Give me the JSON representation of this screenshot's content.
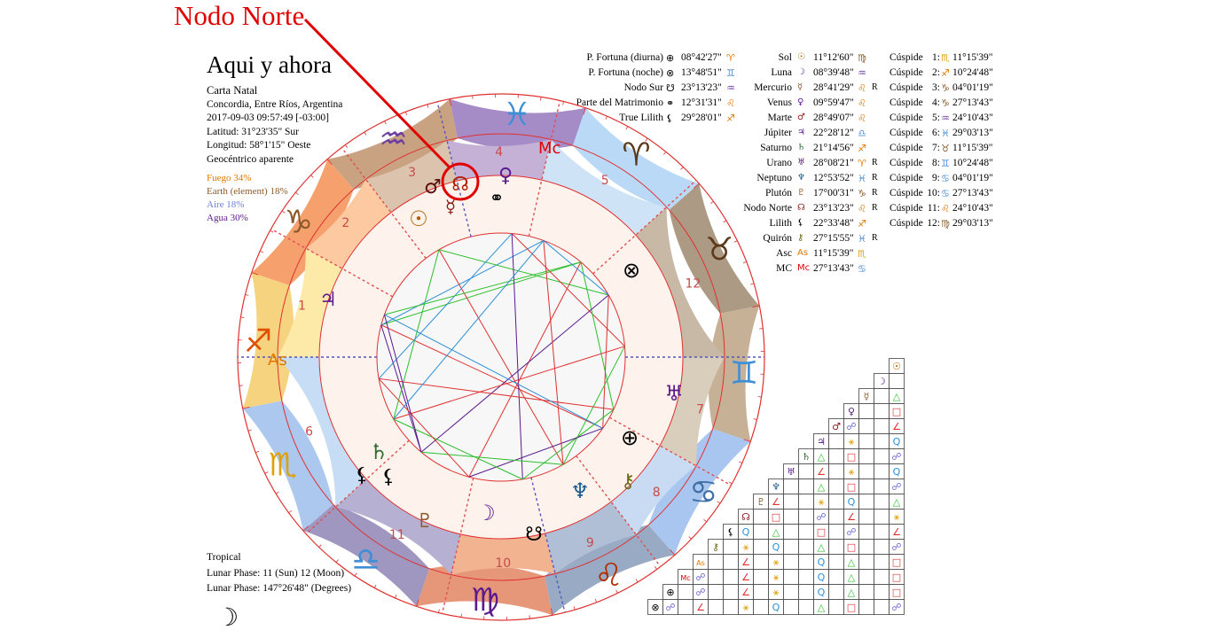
{
  "annotation": {
    "label": "Nodo Norte"
  },
  "chart_info": {
    "title": "Aqui y ahora",
    "subtitle": "Carta Natal",
    "place": "Concordia, Entre Ríos, Argentina",
    "datetime": "2017-09-03 09:57:49 [-03:00]",
    "latitude": "Latitud: 31°23'35\" Sur",
    "longitude": "Longitud: 58°1'15\" Oeste",
    "mode": "Geocéntrico aparente"
  },
  "elements": [
    {
      "label": "Fuego 34%",
      "color": "#e07800"
    },
    {
      "label": "Earth (element) 18%",
      "color": "#8b5a2b"
    },
    {
      "label": "Aire 18%",
      "color": "#6e7fd6"
    },
    {
      "label": "Agua 30%",
      "color": "#5b1a8c"
    }
  ],
  "bottom_info": {
    "zodiac": "Tropical",
    "lunar_phase": "Lunar Phase: 11 (Sun) 12 (Moon)",
    "lunar_degrees": "Lunar Phase: 147°26'48\" (Degrees)",
    "moon_glyph": "☽"
  },
  "points_table": [
    {
      "name": "P. Fortuna (diurna)",
      "glyph": "⊕",
      "glyph_color": "#000",
      "pos": "08°42'27\"",
      "sign": "♈",
      "sign_color": "#e07800"
    },
    {
      "name": "P. Fortuna (noche)",
      "glyph": "⊗",
      "glyph_color": "#000",
      "pos": "13°48'51\"",
      "sign": "♊",
      "sign_color": "#4f8fd6"
    },
    {
      "name": "Nodo Sur",
      "glyph": "☋",
      "glyph_color": "#000",
      "pos": "23°13'23\"",
      "sign": "♒",
      "sign_color": "#6e3fa3"
    },
    {
      "name": "Parte del Matrimonio",
      "glyph": "⚭",
      "glyph_color": "#000",
      "pos": "12°31'31\"",
      "sign": "♌",
      "sign_color": "#e07800"
    },
    {
      "name": "True Lilith",
      "glyph": "⚸",
      "glyph_color": "#000",
      "pos": "29°28'01\"",
      "sign": "♐",
      "sign_color": "#e07800"
    }
  ],
  "planets_table": [
    {
      "name": "Sol",
      "glyph": "☉",
      "glyph_color": "#b06000",
      "pos": "11°12'60\"",
      "sign": "♍",
      "sign_color": "#8b5a2b",
      "retro": ""
    },
    {
      "name": "Luna",
      "glyph": "☽",
      "glyph_color": "#5b1a8c",
      "pos": "08°39'48\"",
      "sign": "♒",
      "sign_color": "#6e3fa3",
      "retro": ""
    },
    {
      "name": "Mercurio",
      "glyph": "☿",
      "glyph_color": "#8b5a2b",
      "pos": "28°41'29\"",
      "sign": "♌",
      "sign_color": "#e07800",
      "retro": "R"
    },
    {
      "name": "Venus",
      "glyph": "♀",
      "glyph_color": "#5b1a8c",
      "pos": "09°59'47\"",
      "sign": "♌",
      "sign_color": "#e07800",
      "retro": ""
    },
    {
      "name": "Marte",
      "glyph": "♂",
      "glyph_color": "#8b1a1a",
      "pos": "28°49'07\"",
      "sign": "♌",
      "sign_color": "#e07800",
      "retro": ""
    },
    {
      "name": "Júpiter",
      "glyph": "♃",
      "glyph_color": "#5b1a8c",
      "pos": "22°28'12\"",
      "sign": "♎",
      "sign_color": "#4f8fd6",
      "retro": ""
    },
    {
      "name": "Saturno",
      "glyph": "♄",
      "glyph_color": "#2e6b2e",
      "pos": "21°14'56\"",
      "sign": "♐",
      "sign_color": "#e07800",
      "retro": ""
    },
    {
      "name": "Urano",
      "glyph": "♅",
      "glyph_color": "#5b1a8c",
      "pos": "28°08'21\"",
      "sign": "♈",
      "sign_color": "#e07800",
      "retro": "R"
    },
    {
      "name": "Neptuno",
      "glyph": "♆",
      "glyph_color": "#1a5b8c",
      "pos": "12°53'52\"",
      "sign": "♓",
      "sign_color": "#4f8fd6",
      "retro": "R"
    },
    {
      "name": "Plutón",
      "glyph": "♇",
      "glyph_color": "#8b5a2b",
      "pos": "17°00'31\"",
      "sign": "♑",
      "sign_color": "#8b5a2b",
      "retro": "R"
    },
    {
      "name": "Nodo Norte",
      "glyph": "☊",
      "glyph_color": "#8b1a1a",
      "pos": "23°13'23\"",
      "sign": "♌",
      "sign_color": "#e07800",
      "retro": "R"
    },
    {
      "name": "Lilith",
      "glyph": "⚸",
      "glyph_color": "#000",
      "pos": "22°33'48\"",
      "sign": "♐",
      "sign_color": "#e07800",
      "retro": ""
    },
    {
      "name": "Quirón",
      "glyph": "⚷",
      "glyph_color": "#6b6b1a",
      "pos": "27°15'55\"",
      "sign": "♓",
      "sign_color": "#4f8fd6",
      "retro": "R"
    },
    {
      "name": "Asc",
      "glyph": "As",
      "glyph_color": "#e07800",
      "pos": "11°15'39\"",
      "sign": "♏",
      "sign_color": "#e0a000",
      "retro": ""
    },
    {
      "name": "MC",
      "glyph": "Mc",
      "glyph_color": "#e00000",
      "pos": "27°13'43\"",
      "sign": "♋",
      "sign_color": "#4f8fd6",
      "retro": ""
    }
  ],
  "cusps_table": [
    {
      "label": "Cúspide",
      "num": "1:",
      "sign": "♏",
      "sign_color": "#e0a000",
      "pos": "11°15'39\""
    },
    {
      "label": "Cúspide",
      "num": "2:",
      "sign": "♐",
      "sign_color": "#e07800",
      "pos": "10°24'48\""
    },
    {
      "label": "Cúspide",
      "num": "3:",
      "sign": "♑",
      "sign_color": "#8b5a2b",
      "pos": "04°01'19\""
    },
    {
      "label": "Cúspide",
      "num": "4:",
      "sign": "♑",
      "sign_color": "#8b5a2b",
      "pos": "27°13'43\""
    },
    {
      "label": "Cúspide",
      "num": "5:",
      "sign": "♒",
      "sign_color": "#6e3fa3",
      "pos": "24°10'43\""
    },
    {
      "label": "Cúspide",
      "num": "6:",
      "sign": "♓",
      "sign_color": "#4f8fd6",
      "pos": "29°03'13\""
    },
    {
      "label": "Cúspide",
      "num": "7:",
      "sign": "♉",
      "sign_color": "#8b5a2b",
      "pos": "11°15'39\""
    },
    {
      "label": "Cúspide",
      "num": "8:",
      "sign": "♊",
      "sign_color": "#4f8fd6",
      "pos": "10°24'48\""
    },
    {
      "label": "Cúspide",
      "num": "9:",
      "sign": "♋",
      "sign_color": "#4f8fd6",
      "pos": "04°01'19\""
    },
    {
      "label": "Cúspide",
      "num": "10:",
      "sign": "♋",
      "sign_color": "#4f8fd6",
      "pos": "27°13'43\""
    },
    {
      "label": "Cúspide",
      "num": "11:",
      "sign": "♌",
      "sign_color": "#e07800",
      "pos": "24°10'43\""
    },
    {
      "label": "Cúspide",
      "num": "12:",
      "sign": "♍",
      "sign_color": "#8b5a2b",
      "pos": "29°03'13\""
    }
  ],
  "wheel": {
    "houses": [
      "1",
      "2",
      "3",
      "4",
      "5",
      "6",
      "7",
      "8",
      "9",
      "10",
      "11",
      "12"
    ],
    "asc_label": "As",
    "mc_label": "Mc",
    "signs": [
      {
        "glyph": "♏",
        "color": "#e0a000"
      },
      {
        "glyph": "♐",
        "color": "#e05000"
      },
      {
        "glyph": "♑",
        "color": "#8b5a2b"
      },
      {
        "glyph": "♒",
        "color": "#6e3fa3"
      },
      {
        "glyph": "♓",
        "color": "#3f8fd6"
      },
      {
        "glyph": "♈",
        "color": "#5a3a1a"
      },
      {
        "glyph": "♉",
        "color": "#5a3a1a"
      },
      {
        "glyph": "♊",
        "color": "#3f8fd6"
      },
      {
        "glyph": "♋",
        "color": "#3f6fa6"
      },
      {
        "glyph": "♌",
        "color": "#b03000"
      },
      {
        "glyph": "♍",
        "color": "#5b1a8c"
      },
      {
        "glyph": "♎",
        "color": "#3f8fd6"
      }
    ],
    "planets": [
      {
        "glyph": "☊",
        "color": "#b02000"
      },
      {
        "glyph": "♂",
        "color": "#5a1010"
      },
      {
        "glyph": "☿",
        "color": "#8b1a1a"
      },
      {
        "glyph": "♀",
        "color": "#5b1a8c"
      },
      {
        "glyph": "⚭",
        "color": "#000"
      },
      {
        "glyph": "☉",
        "color": "#b06000"
      },
      {
        "glyph": "♃",
        "color": "#5b1a8c"
      },
      {
        "glyph": "⊗",
        "color": "#000"
      },
      {
        "glyph": "♅",
        "color": "#5b1a8c"
      },
      {
        "glyph": "⊕",
        "color": "#000"
      },
      {
        "glyph": "⚷",
        "color": "#6b6b1a"
      },
      {
        "glyph": "♆",
        "color": "#1a5b8c"
      },
      {
        "glyph": "☋",
        "color": "#000"
      },
      {
        "glyph": "☽",
        "color": "#5b1a8c"
      },
      {
        "glyph": "♇",
        "color": "#8b5a2b"
      },
      {
        "glyph": "♄",
        "color": "#2e6b2e"
      },
      {
        "glyph": "⚸",
        "color": "#000"
      },
      {
        "glyph": "⚸",
        "color": "#000"
      }
    ]
  },
  "aspect_grid": {
    "row_glyphs": [
      "☉",
      "☽",
      "☿",
      "♀",
      "♂",
      "♃",
      "♄",
      "♅",
      "♆",
      "♇",
      "☊",
      "⚸",
      "⚷",
      "As",
      "Mc",
      "⊕",
      "⊗"
    ],
    "row_colors": [
      "#b06000",
      "#5b1a8c",
      "#8b5a2b",
      "#5b1a8c",
      "#8b1a1a",
      "#5b1a8c",
      "#2e6b2e",
      "#5b1a8c",
      "#1a5b8c",
      "#8b5a2b",
      "#8b1a1a",
      "#000",
      "#6b6b1a",
      "#e07800",
      "#e00000",
      "#000",
      "#000"
    ]
  }
}
